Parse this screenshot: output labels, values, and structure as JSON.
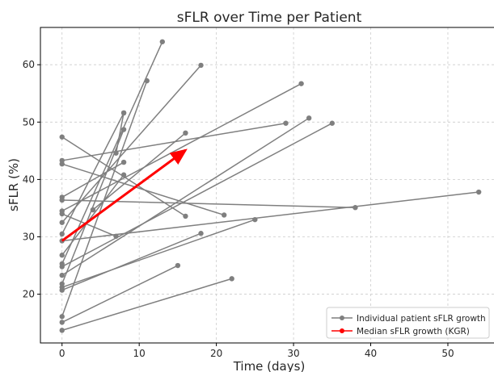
{
  "chart_data": {
    "type": "line",
    "title": "sFLR over Time per Patient",
    "xlabel": "Time (days)",
    "ylabel": "sFLR (%)",
    "xlim": [
      -2.8,
      56.5
    ],
    "ylim": [
      11.5,
      66.5
    ],
    "xticks": [
      0,
      10,
      20,
      30,
      40,
      50
    ],
    "yticks": [
      20,
      30,
      40,
      50,
      60
    ],
    "grid": true,
    "legend": {
      "position": "bottom-right"
    },
    "colors": {
      "patient": "#7f7f7f",
      "median": "#ff0000",
      "grid": "#cccccc",
      "axis": "#000000"
    },
    "series": [
      {
        "name": "Individual patient sFLR growth",
        "color": "#7f7f7f",
        "marker": "circle",
        "segments": [
          [
            [
              0,
              13.7
            ],
            [
              22,
              22.7
            ]
          ],
          [
            [
              0,
              15.1
            ],
            [
              15,
              25.0
            ]
          ],
          [
            [
              0,
              16.1
            ],
            [
              11,
              57.2
            ]
          ],
          [
            [
              0,
              20.7
            ],
            [
              18,
              30.6
            ]
          ],
          [
            [
              0,
              21.2
            ],
            [
              25,
              33.0
            ]
          ],
          [
            [
              0,
              21.8
            ],
            [
              8,
              48.7
            ]
          ],
          [
            [
              0,
              23.3
            ],
            [
              32,
              50.7
            ]
          ],
          [
            [
              0,
              24.8
            ],
            [
              35,
              49.8
            ]
          ],
          [
            [
              0,
              25.3
            ],
            [
              13,
              64.0
            ]
          ],
          [
            [
              0,
              26.8
            ],
            [
              8,
              40.8
            ]
          ],
          [
            [
              0,
              29.3
            ],
            [
              54,
              37.8
            ]
          ],
          [
            [
              0,
              30.5
            ],
            [
              8,
              51.6
            ]
          ],
          [
            [
              0,
              32.5
            ],
            [
              18,
              59.9
            ]
          ],
          [
            [
              0,
              34.0
            ],
            [
              7,
              30.1
            ]
          ],
          [
            [
              0,
              34.5
            ],
            [
              31,
              56.7
            ]
          ],
          [
            [
              0,
              36.4
            ],
            [
              38,
              35.1
            ]
          ],
          [
            [
              0,
              36.9
            ],
            [
              8,
              43.0
            ]
          ],
          [
            [
              0,
              42.7
            ],
            [
              21,
              33.8
            ]
          ],
          [
            [
              0,
              43.3
            ],
            [
              29,
              49.8
            ]
          ],
          [
            [
              0,
              47.4
            ],
            [
              16,
              33.6
            ]
          ],
          [
            [
              4,
              34.7
            ],
            [
              16,
              48.1
            ]
          ],
          [
            [
              7,
              44.6
            ],
            [
              8,
              51.6
            ]
          ]
        ]
      },
      {
        "name": "Median sFLR growth (KGR)",
        "color": "#ff0000",
        "marker": "circle",
        "start": [
          0,
          29.3
        ],
        "end": [
          16,
          45.1
        ]
      }
    ]
  }
}
